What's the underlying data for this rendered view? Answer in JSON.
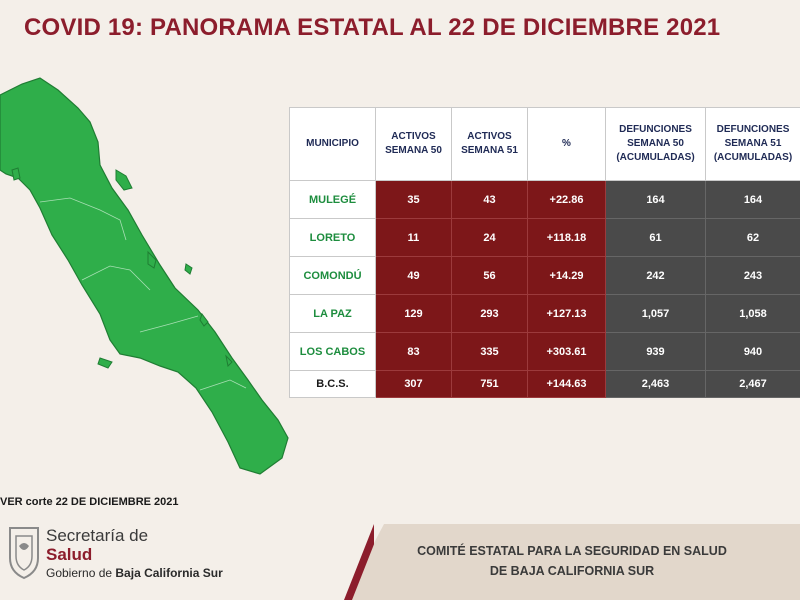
{
  "header": {
    "title": "COVID 19: PANORAMA ESTATAL AL 22 DE DICIEMBRE 2021"
  },
  "source_note": "VER corte 22 DE DICIEMBRE 2021",
  "table": {
    "headers": [
      "MUNICIPIO",
      "ACTIVOS SEMANA 50",
      "ACTIVOS SEMANA 51",
      "%",
      "DEFUNCIONES SEMANA 50 (ACUMULADAS)",
      "DEFUNCIONES SEMANA 51 (ACUMULADAS)"
    ],
    "rows": [
      [
        "MULEGÉ",
        "35",
        "43",
        "+22.86",
        "164",
        "164"
      ],
      [
        "LORETO",
        "11",
        "24",
        "+118.18",
        "61",
        "62"
      ],
      [
        "COMONDÚ",
        "49",
        "56",
        "+14.29",
        "242",
        "243"
      ],
      [
        "LA PAZ",
        "129",
        "293",
        "+127.13",
        "1,057",
        "1,058"
      ],
      [
        "LOS CABOS",
        "83",
        "335",
        "+303.61",
        "939",
        "940"
      ],
      [
        "B.C.S.",
        "307",
        "751",
        "+144.63",
        "2,463",
        "2,467"
      ]
    ]
  },
  "colors": {
    "title": "#8c1d2c",
    "municipio_text": "#1d8d3e",
    "activos_cell": "#7d1719",
    "defunciones_cell": "#4a4a4a",
    "map_fill": "#2fae4a"
  },
  "entity": {
    "secretaria": "Secretaría de",
    "salud": "Salud",
    "gobierno_prefix": "Gobierno de",
    "gobierno_state": "Baja California Sur"
  },
  "footer": {
    "line1": "COMITÉ ESTATAL PARA LA SEGURIDAD EN SALUD",
    "line2": "DE BAJA CALIFORNIA SUR"
  },
  "icons": {
    "logo": "state-coat-of-arms-icon",
    "map": "baja-california-sur-map"
  }
}
